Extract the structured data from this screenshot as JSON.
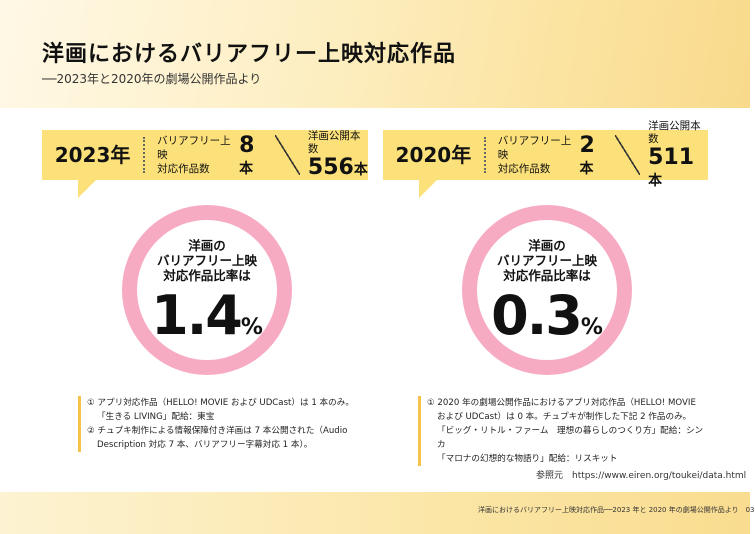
{
  "header": {
    "title": "洋画におけるバリアフリー上映対応作品",
    "subtitle": "──2023年と2020年の劇場公開作品より"
  },
  "panels": [
    {
      "year": "2023年",
      "bf_label_1": "バリアフリー上映",
      "bf_label_2": "対応作品数",
      "bf_count": "8",
      "bf_unit": "本",
      "pub_label": "洋画公開本数",
      "pub_count": "556",
      "pub_unit": "本",
      "ring_label_1": "洋画の",
      "ring_label_2": "バリアフリー上映",
      "ring_label_3": "対応作品比率は",
      "ratio": "1.4",
      "ratio_unit": "%",
      "notes": [
        "① アプリ対応作品（HELLO! MOVIE および UDCast）は 1 本のみ。",
        "「生きる LIVING」配給：東宝",
        "② チュプキ制作による情報保障付き洋画は 7 本公開された（Audio",
        "Description 対応 7 本、バリアフリー字幕対応 1 本）。"
      ]
    },
    {
      "year": "2020年",
      "bf_label_1": "バリアフリー上映",
      "bf_label_2": "対応作品数",
      "bf_count": "2",
      "bf_unit": "本",
      "pub_label": "洋画公開本数",
      "pub_count": "511",
      "pub_unit": "本",
      "ring_label_1": "洋画の",
      "ring_label_2": "バリアフリー上映",
      "ring_label_3": "対応作品比率は",
      "ratio": "0.3",
      "ratio_unit": "%",
      "notes": [
        "① 2020 年の劇場公開作品におけるアプリ対応作品（HELLO! MOVIE",
        "および UDCast）は 0 本。チュプキが制作した下記 2 作品のみ。",
        "「ビッグ・リトル・ファーム　理想の暮らしのつくり方」配給：シンカ",
        "「マロナの幻想的な物語り」配給：リスキット"
      ]
    }
  ],
  "source": "参照元　https://www.eiren.org/toukei/data.html",
  "footer": "洋画におけるバリアフリー上映対応作品──2023 年と 2020 年の劇場公開作品より　03",
  "colors": {
    "banner": "#fce17a",
    "ring": "#f7abc3",
    "note_bar": "#f6c34a"
  }
}
